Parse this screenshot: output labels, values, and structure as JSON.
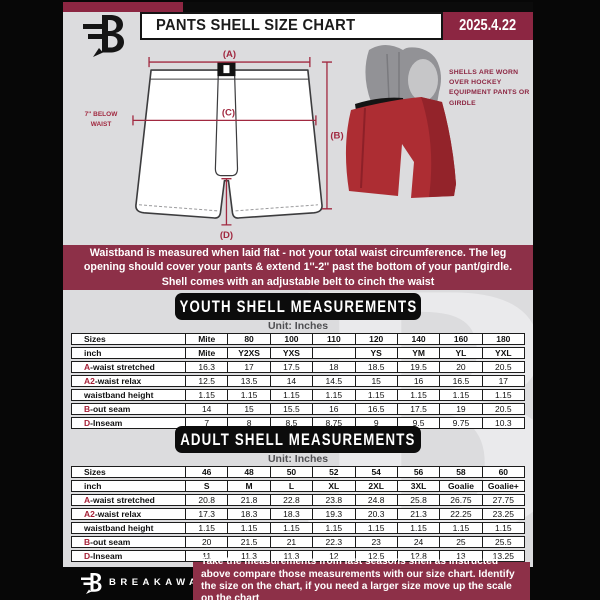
{
  "header": {
    "title": "PANTS SHELL SIZE CHART",
    "date": "2025.4.22"
  },
  "diagram": {
    "label_a": "(A)",
    "label_b": "(B)",
    "label_c": "(C)",
    "label_d": "(D)",
    "below_waist_note": "7'' BELOW WAIST",
    "shell_note": "SHELLS ARE WORN OVER HOCKEY EQUIPMENT PANTS OR GIRDLE"
  },
  "banner": {
    "text": "Waistband is measured when laid flat - not your total waist circumference. The leg opening should cover your pants & extend 1''-2'' past the bottom of your pant/girdle. Shell comes with an adjustable belt to cinch the waist"
  },
  "youth_table": {
    "section_title": "YOUTH SHELL MEASUREMENTS",
    "unit_label": "Unit: Inches",
    "rows": [
      {
        "prefix": "",
        "label": "Sizes",
        "header": true,
        "values": [
          "Mite",
          "80",
          "100",
          "110",
          "120",
          "140",
          "160",
          "180"
        ]
      },
      {
        "prefix": "",
        "label": "inch",
        "header": true,
        "values": [
          "Mite",
          "Y2XS",
          "YXS",
          "",
          "YS",
          "YM",
          "YL",
          "YXL"
        ]
      },
      {
        "prefix": "A",
        "label": "-waist stretched",
        "header": false,
        "values": [
          "16.3",
          "17",
          "17.5",
          "18",
          "18.5",
          "19.5",
          "20",
          "20.5"
        ]
      },
      {
        "prefix": "A2",
        "label": "-waist relax",
        "header": false,
        "values": [
          "12.5",
          "13.5",
          "14",
          "14.5",
          "15",
          "16",
          "16.5",
          "17"
        ]
      },
      {
        "prefix": "",
        "label": "waistband height",
        "header": false,
        "values": [
          "1.15",
          "1.15",
          "1.15",
          "1.15",
          "1.15",
          "1.15",
          "1.15",
          "1.15"
        ]
      },
      {
        "prefix": "B",
        "label": "-out seam",
        "header": false,
        "values": [
          "14",
          "15",
          "15.5",
          "16",
          "16.5",
          "17.5",
          "19",
          "20.5"
        ]
      },
      {
        "prefix": "D",
        "label": "-Inseam",
        "header": false,
        "values": [
          "7",
          "8",
          "8.5",
          "8.75",
          "9",
          "9.5",
          "9.75",
          "10.3"
        ]
      }
    ]
  },
  "adult_table": {
    "section_title": "ADULT SHELL MEASUREMENTS",
    "unit_label": "Unit: Inches",
    "rows": [
      {
        "prefix": "",
        "label": "Sizes",
        "header": true,
        "values": [
          "46",
          "48",
          "50",
          "52",
          "54",
          "56",
          "58",
          "60"
        ]
      },
      {
        "prefix": "",
        "label": "inch",
        "header": true,
        "values": [
          "S",
          "M",
          "L",
          "XL",
          "2XL",
          "3XL",
          "Goalie",
          "Goalie+"
        ]
      },
      {
        "prefix": "A",
        "label": "-waist stretched",
        "header": false,
        "values": [
          "20.8",
          "21.8",
          "22.8",
          "23.8",
          "24.8",
          "25.8",
          "26.75",
          "27.75"
        ]
      },
      {
        "prefix": "A2",
        "label": "-waist relax",
        "header": false,
        "values": [
          "17.3",
          "18.3",
          "18.3",
          "19.3",
          "20.3",
          "21.3",
          "22.25",
          "23.25"
        ]
      },
      {
        "prefix": "",
        "label": "waistband height",
        "header": false,
        "values": [
          "1.15",
          "1.15",
          "1.15",
          "1.15",
          "1.15",
          "1.15",
          "1.15",
          "1.15"
        ]
      },
      {
        "prefix": "B",
        "label": "-out seam",
        "header": false,
        "values": [
          "20",
          "21.5",
          "21",
          "22.3",
          "23",
          "24",
          "25",
          "25.5"
        ]
      },
      {
        "prefix": "D",
        "label": "-Inseam",
        "header": false,
        "values": [
          "11",
          "11.3",
          "11.3",
          "12",
          "12.5",
          "12.8",
          "13",
          "13.25"
        ]
      }
    ]
  },
  "footer": {
    "brand": "BREAKAWAY",
    "watermark_letter": "B",
    "note": "Take the measurements from last seasons shell as instructed above compare those measurements  with our size chart. Identify the size on the chart, if you need a larger size move up the scale on the chart"
  },
  "colors": {
    "maroon_banner": "#8d3048",
    "maroon_dark": "#8c2642",
    "red_accent": "#a51e35",
    "page_bg": "#dcdcde",
    "shell_red": "#ad2d33"
  }
}
